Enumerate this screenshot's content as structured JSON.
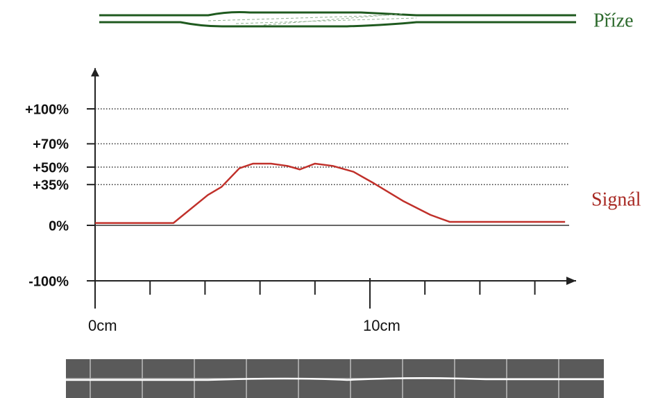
{
  "chart_data": {
    "type": "line",
    "yarn_label": "Příze",
    "series": [
      {
        "name": "Signál",
        "color": "#c0302a",
        "x": [
          0,
          2.85,
          4.1,
          4.6,
          5.25,
          5.75,
          6.4,
          7.0,
          7.45,
          8.0,
          8.65,
          9.4,
          10.15,
          11.2,
          12.2,
          12.9,
          17.1
        ],
        "values": [
          2,
          2,
          26,
          33,
          49,
          53,
          53,
          51,
          48,
          53,
          51,
          46,
          36,
          21,
          9,
          3,
          3
        ]
      }
    ],
    "xlim": [
      0,
      17.5
    ],
    "xticks": [
      {
        "value": 0,
        "label": "0cm"
      },
      {
        "value": 10,
        "label": "10cm"
      }
    ],
    "x_minor_ticks": [
      2,
      4,
      6,
      8,
      12,
      14,
      16
    ],
    "ylim": [
      -140,
      135
    ],
    "yticks": [
      {
        "value": -100,
        "label": "-100%"
      },
      {
        "value": 0,
        "label": "0%"
      },
      {
        "value": 35,
        "label": "+35%"
      },
      {
        "value": 50,
        "label": "+50%"
      },
      {
        "value": 70,
        "label": "+70%"
      },
      {
        "value": 100,
        "label": "+100%"
      }
    ],
    "grid": true
  }
}
